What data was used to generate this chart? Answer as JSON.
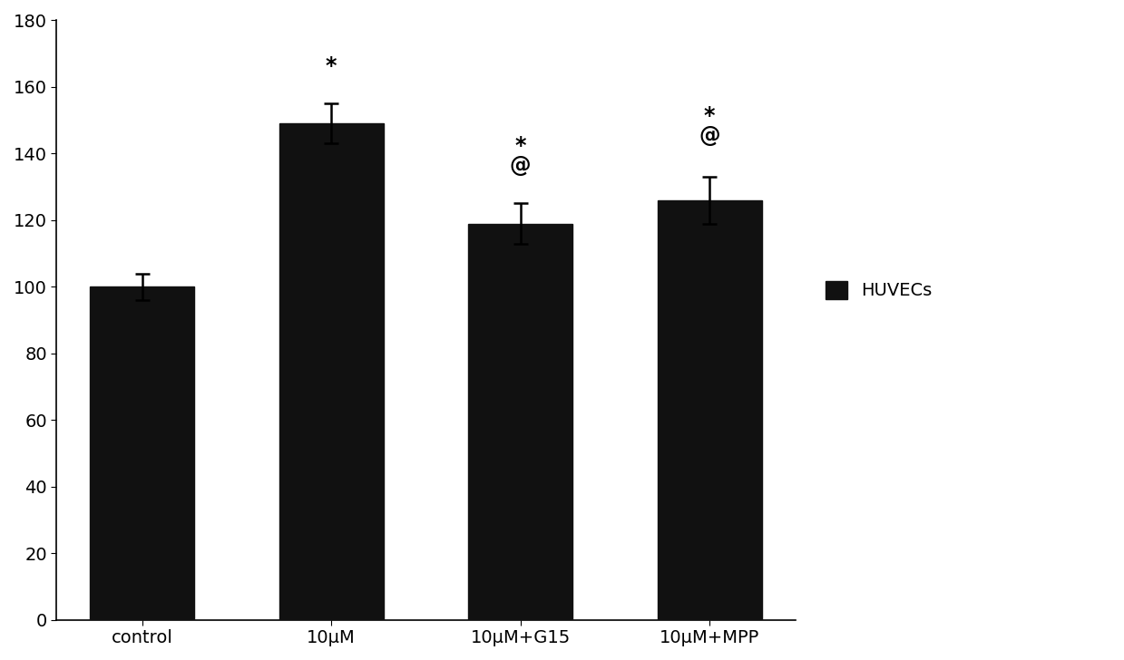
{
  "categories": [
    "control",
    "10μM",
    "10μM+G15",
    "10μM+MPP"
  ],
  "values": [
    100,
    149,
    119,
    126
  ],
  "errors": [
    4,
    6,
    6,
    7
  ],
  "bar_color": "#111111",
  "bar_width": 0.55,
  "ylim": [
    0,
    180
  ],
  "yticks": [
    0,
    20,
    40,
    60,
    80,
    100,
    120,
    140,
    160,
    180
  ],
  "annotations": [
    "",
    "*",
    "*\n@",
    "*\n@"
  ],
  "error_offsets": [
    6,
    8,
    8,
    9
  ],
  "legend_label": "HUVECs",
  "legend_color": "#111111",
  "background_color": "#ffffff",
  "tick_fontsize": 14,
  "annotation_fontsize": 17,
  "legend_fontsize": 14
}
